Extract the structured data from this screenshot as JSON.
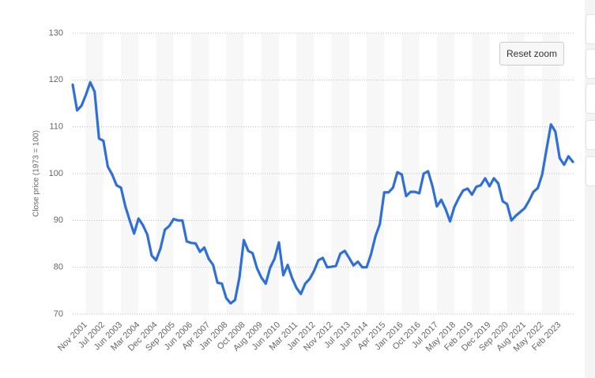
{
  "reset_zoom_button": "Reset zoom",
  "chart_data": {
    "type": "line",
    "y_axis_label": "Close price (1973 = 100)",
    "color": "#2e6fd8",
    "grid": true,
    "ylim": [
      70,
      130
    ],
    "yticks": [
      70,
      80,
      90,
      100,
      110,
      120,
      130
    ],
    "categories": [
      null,
      null,
      null,
      "Nov 2001",
      null,
      null,
      null,
      "Jul 2002",
      null,
      null,
      null,
      "Jun 2003",
      null,
      null,
      null,
      "Mar 2004",
      null,
      null,
      null,
      "Dec 2004",
      null,
      null,
      null,
      "Sep 2005",
      null,
      null,
      null,
      "Jun 2006",
      null,
      null,
      null,
      "Apr 2007",
      null,
      null,
      null,
      "Jan 2008",
      null,
      null,
      null,
      "Oct 2008",
      null,
      null,
      null,
      "Aug 2009",
      null,
      null,
      null,
      "Jun 2010",
      null,
      null,
      null,
      "Mar 2011",
      null,
      null,
      null,
      "Jan 2012",
      null,
      null,
      null,
      "Nov 2012",
      null,
      null,
      null,
      "Jul 2013",
      null,
      null,
      null,
      "Jun 2014",
      null,
      null,
      null,
      "Apr 2015",
      null,
      null,
      null,
      "Jan 2016",
      null,
      null,
      null,
      "Oct 2016",
      null,
      null,
      null,
      "Jul 2017",
      null,
      null,
      null,
      "May 2018",
      null,
      null,
      null,
      "Feb 2019",
      null,
      null,
      null,
      "Dec 2019",
      null,
      null,
      null,
      "Sep 2020",
      null,
      null,
      null,
      "Aug 2021",
      null,
      null,
      null,
      "May 2022",
      null,
      null,
      null,
      "Feb 2023",
      null,
      null,
      null
    ],
    "values": [
      119,
      113.5,
      114.5,
      116.8,
      119.5,
      117.5,
      107.5,
      107,
      101.5,
      99.8,
      97.5,
      97,
      93,
      90,
      87.2,
      90.4,
      89,
      87,
      82.5,
      81.5,
      84,
      88,
      88.8,
      90.3,
      90,
      90,
      85.5,
      85.2,
      85.1,
      83.3,
      84.2,
      81.8,
      80.5,
      76.7,
      76.5,
      73.4,
      72.3,
      73,
      77.8,
      85.8,
      83.5,
      83,
      79.8,
      77.8,
      76.5,
      79.9,
      81.8,
      85.3,
      78.3,
      80.5,
      77.7,
      75.6,
      74.3,
      76.5,
      77.5,
      79.2,
      81.5,
      82,
      80,
      80.1,
      80.3,
      82.9,
      83.5,
      82,
      80.4,
      81.2,
      80,
      80,
      82.8,
      86.6,
      89.2,
      96,
      96,
      97,
      100.3,
      99.8,
      95.2,
      96.1,
      96.1,
      95.8,
      100,
      100.5,
      97.3,
      93,
      94.4,
      92.4,
      89.8,
      92.9,
      94.8,
      96.4,
      96.8,
      95.5,
      97.2,
      97.5,
      99,
      97.3,
      99,
      97.9,
      94.1,
      93.5,
      90,
      91,
      91.8,
      92.6,
      94.2,
      96.1,
      96.9,
      99.8,
      105.2,
      110.5,
      109,
      103.3,
      101.9,
      103.7,
      102.5
    ]
  }
}
